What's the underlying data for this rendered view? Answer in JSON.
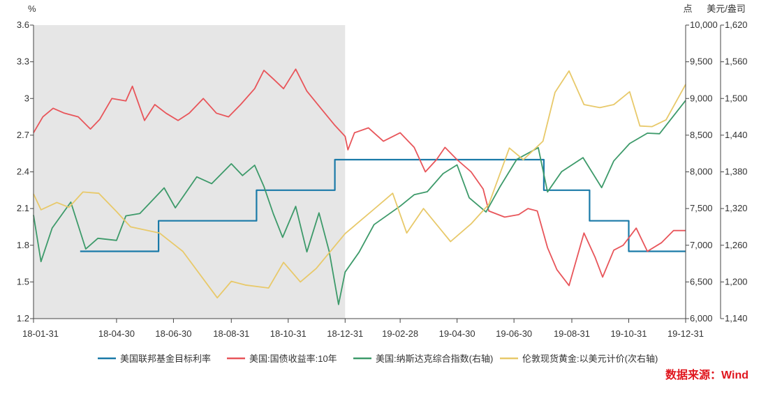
{
  "chart_data": {
    "type": "line",
    "left_axis": {
      "title": "%",
      "min": 1.2,
      "max": 3.6,
      "ticks": [
        "1.2",
        "1.5",
        "1.8",
        "2.1",
        "2.4",
        "2.7",
        "3",
        "3.3",
        "3.6"
      ]
    },
    "right_axis": {
      "title": "点",
      "min": 6000,
      "max": 10000,
      "ticks": [
        "6,000",
        "6,500",
        "7,000",
        "7,500",
        "8,000",
        "8,500",
        "9,000",
        "9,500",
        "10,000"
      ]
    },
    "right2_axis": {
      "title": "美元/盎司",
      "min": 1140,
      "max": 1620,
      "ticks": [
        "1,140",
        "1,200",
        "1,260",
        "1,320",
        "1,380",
        "1,440",
        "1,500",
        "1,560",
        "1,620"
      ]
    },
    "x_axis": {
      "min": "2018-01-31",
      "max": "2019-12-31",
      "ticks": [
        {
          "date": "2018-01-31",
          "label": "18-01-31"
        },
        {
          "date": "2018-04-30",
          "label": "18-04-30"
        },
        {
          "date": "2018-06-30",
          "label": "18-06-30"
        },
        {
          "date": "2018-08-31",
          "label": "18-08-31"
        },
        {
          "date": "2018-10-31",
          "label": "18-10-31"
        },
        {
          "date": "2018-12-31",
          "label": "18-12-31"
        },
        {
          "date": "2019-02-28",
          "label": "19-02-28"
        },
        {
          "date": "2019-04-30",
          "label": "19-04-30"
        },
        {
          "date": "2019-06-30",
          "label": "19-06-30"
        },
        {
          "date": "2019-08-31",
          "label": "19-08-31"
        },
        {
          "date": "2019-10-31",
          "label": "19-10-31"
        },
        {
          "date": "2019-12-31",
          "label": "19-12-31"
        }
      ]
    },
    "shaded_region": {
      "start": "2018-01-31",
      "end": "2018-12-31",
      "color": "#e6e6e6"
    },
    "grid": false,
    "legend_position": "bottom",
    "series": [
      {
        "name": "美国联邦基金目标利率",
        "axis": "left",
        "color": "#1a7aa8",
        "style": "step",
        "points": [
          [
            "2018-03-22",
            1.75
          ],
          [
            "2018-06-14",
            2.0
          ],
          [
            "2018-09-27",
            2.25
          ],
          [
            "2018-12-20",
            2.5
          ],
          [
            "2019-08-01",
            2.25
          ],
          [
            "2019-09-19",
            2.0
          ],
          [
            "2019-10-31",
            1.75
          ],
          [
            "2019-12-31",
            1.75
          ]
        ]
      },
      {
        "name": "美国:国债收益率:10年",
        "axis": "left",
        "color": "#e8555a",
        "points": [
          [
            "2018-01-31",
            2.72
          ],
          [
            "2018-02-10",
            2.85
          ],
          [
            "2018-02-21",
            2.92
          ],
          [
            "2018-03-05",
            2.88
          ],
          [
            "2018-03-20",
            2.85
          ],
          [
            "2018-04-02",
            2.75
          ],
          [
            "2018-04-12",
            2.83
          ],
          [
            "2018-04-25",
            3.0
          ],
          [
            "2018-05-10",
            2.98
          ],
          [
            "2018-05-17",
            3.1
          ],
          [
            "2018-05-30",
            2.82
          ],
          [
            "2018-06-10",
            2.95
          ],
          [
            "2018-06-22",
            2.88
          ],
          [
            "2018-07-05",
            2.82
          ],
          [
            "2018-07-17",
            2.88
          ],
          [
            "2018-08-01",
            3.0
          ],
          [
            "2018-08-15",
            2.88
          ],
          [
            "2018-08-28",
            2.85
          ],
          [
            "2018-09-10",
            2.95
          ],
          [
            "2018-09-25",
            3.08
          ],
          [
            "2018-10-05",
            3.23
          ],
          [
            "2018-10-15",
            3.16
          ],
          [
            "2018-10-26",
            3.08
          ],
          [
            "2018-11-08",
            3.24
          ],
          [
            "2018-11-20",
            3.06
          ],
          [
            "2018-12-05",
            2.92
          ],
          [
            "2018-12-20",
            2.78
          ],
          [
            "2018-12-31",
            2.69
          ],
          [
            "2019-01-03",
            2.58
          ],
          [
            "2019-01-10",
            2.72
          ],
          [
            "2019-01-25",
            2.76
          ],
          [
            "2019-02-10",
            2.65
          ],
          [
            "2019-02-28",
            2.72
          ],
          [
            "2019-03-15",
            2.6
          ],
          [
            "2019-03-27",
            2.4
          ],
          [
            "2019-04-08",
            2.5
          ],
          [
            "2019-04-17",
            2.6
          ],
          [
            "2019-04-30",
            2.5
          ],
          [
            "2019-05-15",
            2.4
          ],
          [
            "2019-05-28",
            2.26
          ],
          [
            "2019-06-03",
            2.08
          ],
          [
            "2019-06-20",
            2.03
          ],
          [
            "2019-07-05",
            2.05
          ],
          [
            "2019-07-15",
            2.1
          ],
          [
            "2019-07-25",
            2.08
          ],
          [
            "2019-08-05",
            1.78
          ],
          [
            "2019-08-15",
            1.6
          ],
          [
            "2019-08-28",
            1.47
          ],
          [
            "2019-09-13",
            1.9
          ],
          [
            "2019-09-25",
            1.7
          ],
          [
            "2019-10-03",
            1.54
          ],
          [
            "2019-10-15",
            1.76
          ],
          [
            "2019-10-25",
            1.8
          ],
          [
            "2019-11-08",
            1.94
          ],
          [
            "2019-11-20",
            1.75
          ],
          [
            "2019-12-05",
            1.82
          ],
          [
            "2019-12-18",
            1.92
          ],
          [
            "2019-12-31",
            1.92
          ]
        ]
      },
      {
        "name": "美国:纳斯达克综合指数(右轴)",
        "axis": "right",
        "color": "#3d9a6a",
        "points": [
          [
            "2018-01-31",
            7411
          ],
          [
            "2018-02-08",
            6777
          ],
          [
            "2018-02-20",
            7234
          ],
          [
            "2018-03-12",
            7588
          ],
          [
            "2018-03-28",
            6949
          ],
          [
            "2018-04-10",
            7095
          ],
          [
            "2018-04-30",
            7066
          ],
          [
            "2018-05-10",
            7400
          ],
          [
            "2018-05-25",
            7433
          ],
          [
            "2018-06-20",
            7781
          ],
          [
            "2018-07-02",
            7510
          ],
          [
            "2018-07-25",
            7932
          ],
          [
            "2018-08-10",
            7839
          ],
          [
            "2018-08-31",
            8110
          ],
          [
            "2018-09-12",
            7950
          ],
          [
            "2018-09-25",
            8090
          ],
          [
            "2018-10-05",
            7800
          ],
          [
            "2018-10-15",
            7430
          ],
          [
            "2018-10-25",
            7108
          ],
          [
            "2018-11-08",
            7530
          ],
          [
            "2018-11-20",
            6909
          ],
          [
            "2018-12-03",
            7441
          ],
          [
            "2018-12-14",
            6911
          ],
          [
            "2018-12-24",
            6193
          ],
          [
            "2018-12-31",
            6635
          ],
          [
            "2019-01-15",
            6905
          ],
          [
            "2019-01-31",
            7281
          ],
          [
            "2019-02-28",
            7533
          ],
          [
            "2019-03-15",
            7688
          ],
          [
            "2019-03-29",
            7729
          ],
          [
            "2019-04-15",
            7976
          ],
          [
            "2019-04-30",
            8095
          ],
          [
            "2019-05-13",
            7647
          ],
          [
            "2019-05-31",
            7453
          ],
          [
            "2019-06-15",
            7797
          ],
          [
            "2019-07-03",
            8170
          ],
          [
            "2019-07-26",
            8330
          ],
          [
            "2019-08-05",
            7726
          ],
          [
            "2019-08-20",
            8002
          ],
          [
            "2019-09-12",
            8194
          ],
          [
            "2019-10-02",
            7785
          ],
          [
            "2019-10-15",
            8149
          ],
          [
            "2019-11-01",
            8386
          ],
          [
            "2019-11-20",
            8527
          ],
          [
            "2019-12-03",
            8520
          ],
          [
            "2019-12-31",
            8973
          ]
        ]
      },
      {
        "name": "伦敦现货黄金:以美元计价(次右轴)",
        "axis": "right2",
        "color": "#e8c96a",
        "points": [
          [
            "2018-01-31",
            1344
          ],
          [
            "2018-02-08",
            1318
          ],
          [
            "2018-02-25",
            1330
          ],
          [
            "2018-03-10",
            1322
          ],
          [
            "2018-03-25",
            1347
          ],
          [
            "2018-04-11",
            1345
          ],
          [
            "2018-04-30",
            1315
          ],
          [
            "2018-05-15",
            1290
          ],
          [
            "2018-06-15",
            1280
          ],
          [
            "2018-07-10",
            1250
          ],
          [
            "2018-08-16",
            1174
          ],
          [
            "2018-08-31",
            1201
          ],
          [
            "2018-09-15",
            1195
          ],
          [
            "2018-10-10",
            1190
          ],
          [
            "2018-10-26",
            1232
          ],
          [
            "2018-11-13",
            1200
          ],
          [
            "2018-11-30",
            1222
          ],
          [
            "2018-12-31",
            1279
          ],
          [
            "2019-01-31",
            1319
          ],
          [
            "2019-02-20",
            1345
          ],
          [
            "2019-03-07",
            1280
          ],
          [
            "2019-03-25",
            1320
          ],
          [
            "2019-04-23",
            1266
          ],
          [
            "2019-05-15",
            1295
          ],
          [
            "2019-06-03",
            1327
          ],
          [
            "2019-06-25",
            1419
          ],
          [
            "2019-07-10",
            1400
          ],
          [
            "2019-07-31",
            1430
          ],
          [
            "2019-08-13",
            1510
          ],
          [
            "2019-08-28",
            1545
          ],
          [
            "2019-09-13",
            1490
          ],
          [
            "2019-09-30",
            1485
          ],
          [
            "2019-10-15",
            1490
          ],
          [
            "2019-11-01",
            1511
          ],
          [
            "2019-11-12",
            1455
          ],
          [
            "2019-11-25",
            1454
          ],
          [
            "2019-12-10",
            1465
          ],
          [
            "2019-12-31",
            1523
          ]
        ]
      }
    ],
    "source": "数据来源：Wind"
  }
}
